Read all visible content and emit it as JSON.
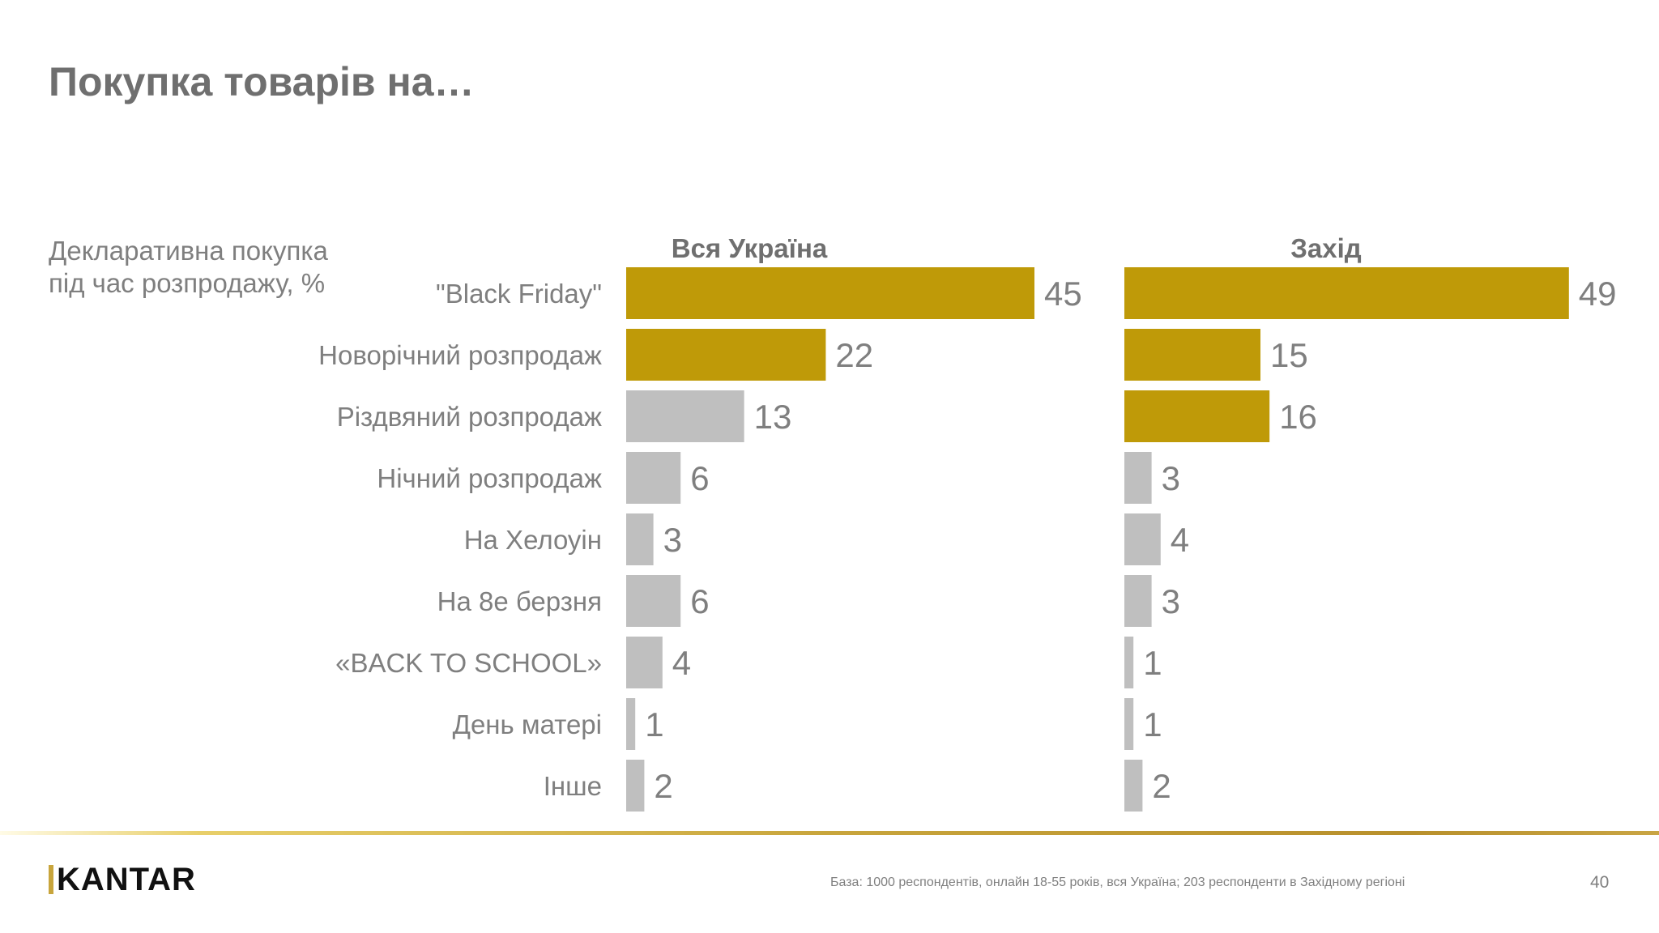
{
  "slide": {
    "title": "Покупка товарів на…",
    "subtitle_line1": "Декларативна покупка",
    "subtitle_line2": "під час розпродажу, %",
    "footnote": "База: 1000 респондентів, онлайн 18-55 років, вся Україна; 203 респонденти в Західному регіоні",
    "page_number": "40",
    "logo": "KANTAR"
  },
  "colors": {
    "highlight": "#bf9a08",
    "neutral": "#bfbfbf",
    "text": "#7f7f7f",
    "panel_title": "#6f6f6f"
  },
  "chart_data": {
    "type": "bar",
    "orientation": "horizontal",
    "categories": [
      "\"Black Friday\"",
      "Новорічний розпродаж",
      "Різдвяний розпродаж",
      "Нічний розпродаж",
      "На Хелоуін",
      "На 8е берзня",
      "«BACK TO SCHOOL»",
      "День матері",
      "Інше"
    ],
    "series": [
      {
        "name": "Вся Україна",
        "values": [
          45,
          22,
          13,
          6,
          3,
          6,
          4,
          1,
          2
        ],
        "highlight": [
          true,
          true,
          false,
          false,
          false,
          false,
          false,
          false,
          false
        ]
      },
      {
        "name": "Захід",
        "values": [
          49,
          15,
          16,
          3,
          4,
          3,
          1,
          1,
          2
        ],
        "highlight": [
          true,
          true,
          true,
          false,
          false,
          false,
          false,
          false,
          false
        ]
      }
    ],
    "data_labels": true,
    "grid": false,
    "legend": "none"
  }
}
